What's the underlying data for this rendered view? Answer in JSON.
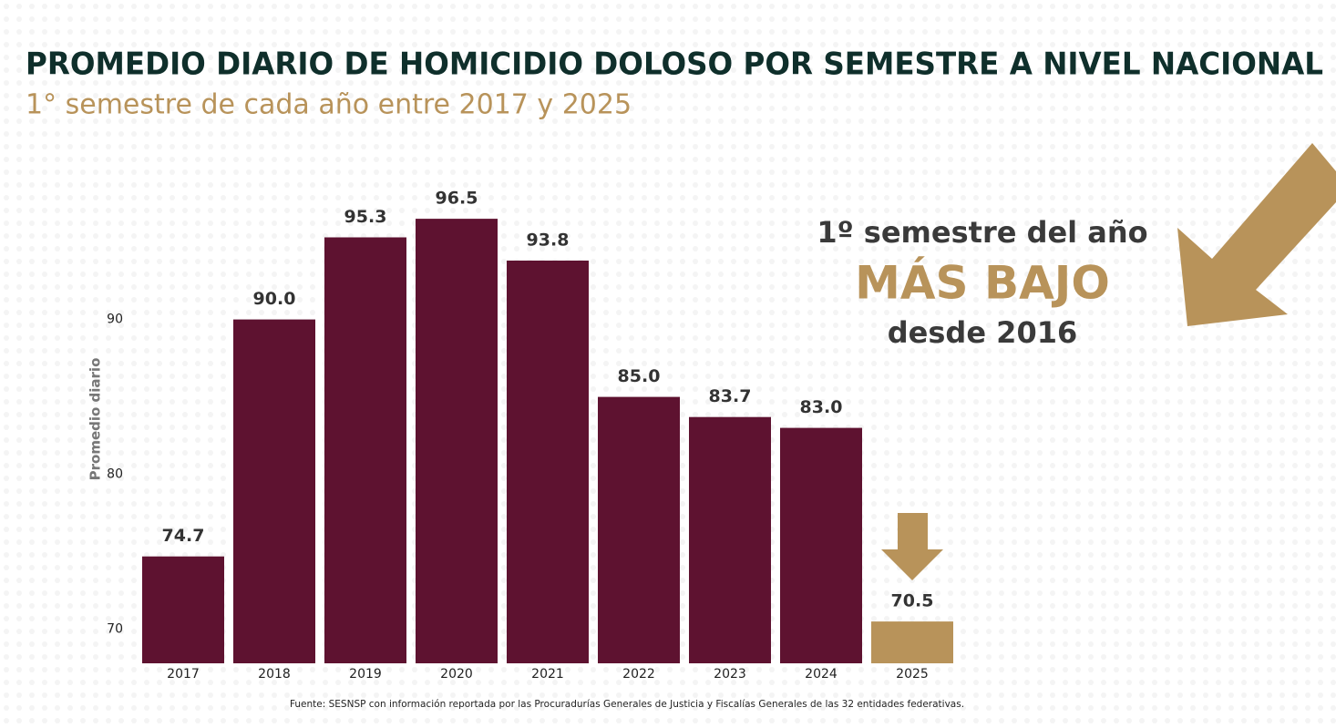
{
  "chart_data": {
    "type": "bar",
    "title": "PROMEDIO DIARIO DE HOMICIDIO DOLOSO POR SEMESTRE A NIVEL NACIONAL",
    "subtitle": "1° semestre de cada año entre 2017 y 2025",
    "y_label": "Promedio diario",
    "categories": [
      "2017",
      "2018",
      "2019",
      "2020",
      "2021",
      "2022",
      "2023",
      "2024",
      "2025"
    ],
    "values": [
      74.7,
      90.0,
      95.3,
      96.5,
      93.8,
      85.0,
      83.7,
      83.0,
      70.5
    ],
    "value_labels": [
      "74.7",
      "90.0",
      "95.3",
      "96.5",
      "93.8",
      "85.0",
      "83.7",
      "83.0",
      "70.5"
    ],
    "colors": [
      "#5e1230",
      "#5e1230",
      "#5e1230",
      "#5e1230",
      "#5e1230",
      "#5e1230",
      "#5e1230",
      "#5e1230",
      "#b8935a"
    ],
    "ylim": [
      67.8,
      100
    ],
    "yticks": [
      70,
      80,
      90
    ],
    "grid": false,
    "annotations": [
      "1º semestre del año",
      "MÁS BAJO",
      "desde 2016"
    ],
    "source": "Fuente: SESNSP con información reportada por las Procuradurías Generales de Justicia y Fiscalías Generales de las 32 entidades federativas."
  }
}
